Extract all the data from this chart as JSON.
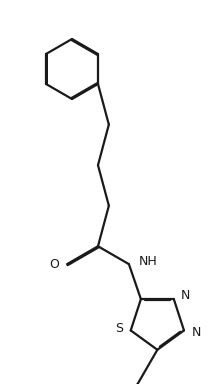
{
  "bg_color": "#ffffff",
  "line_color": "#1a1a1a",
  "lw": 1.6,
  "dbo": 0.012,
  "figsize": [
    2.2,
    3.84
  ],
  "dpi": 100,
  "xlim": [
    0,
    2.2
  ],
  "ylim": [
    0,
    3.84
  ]
}
